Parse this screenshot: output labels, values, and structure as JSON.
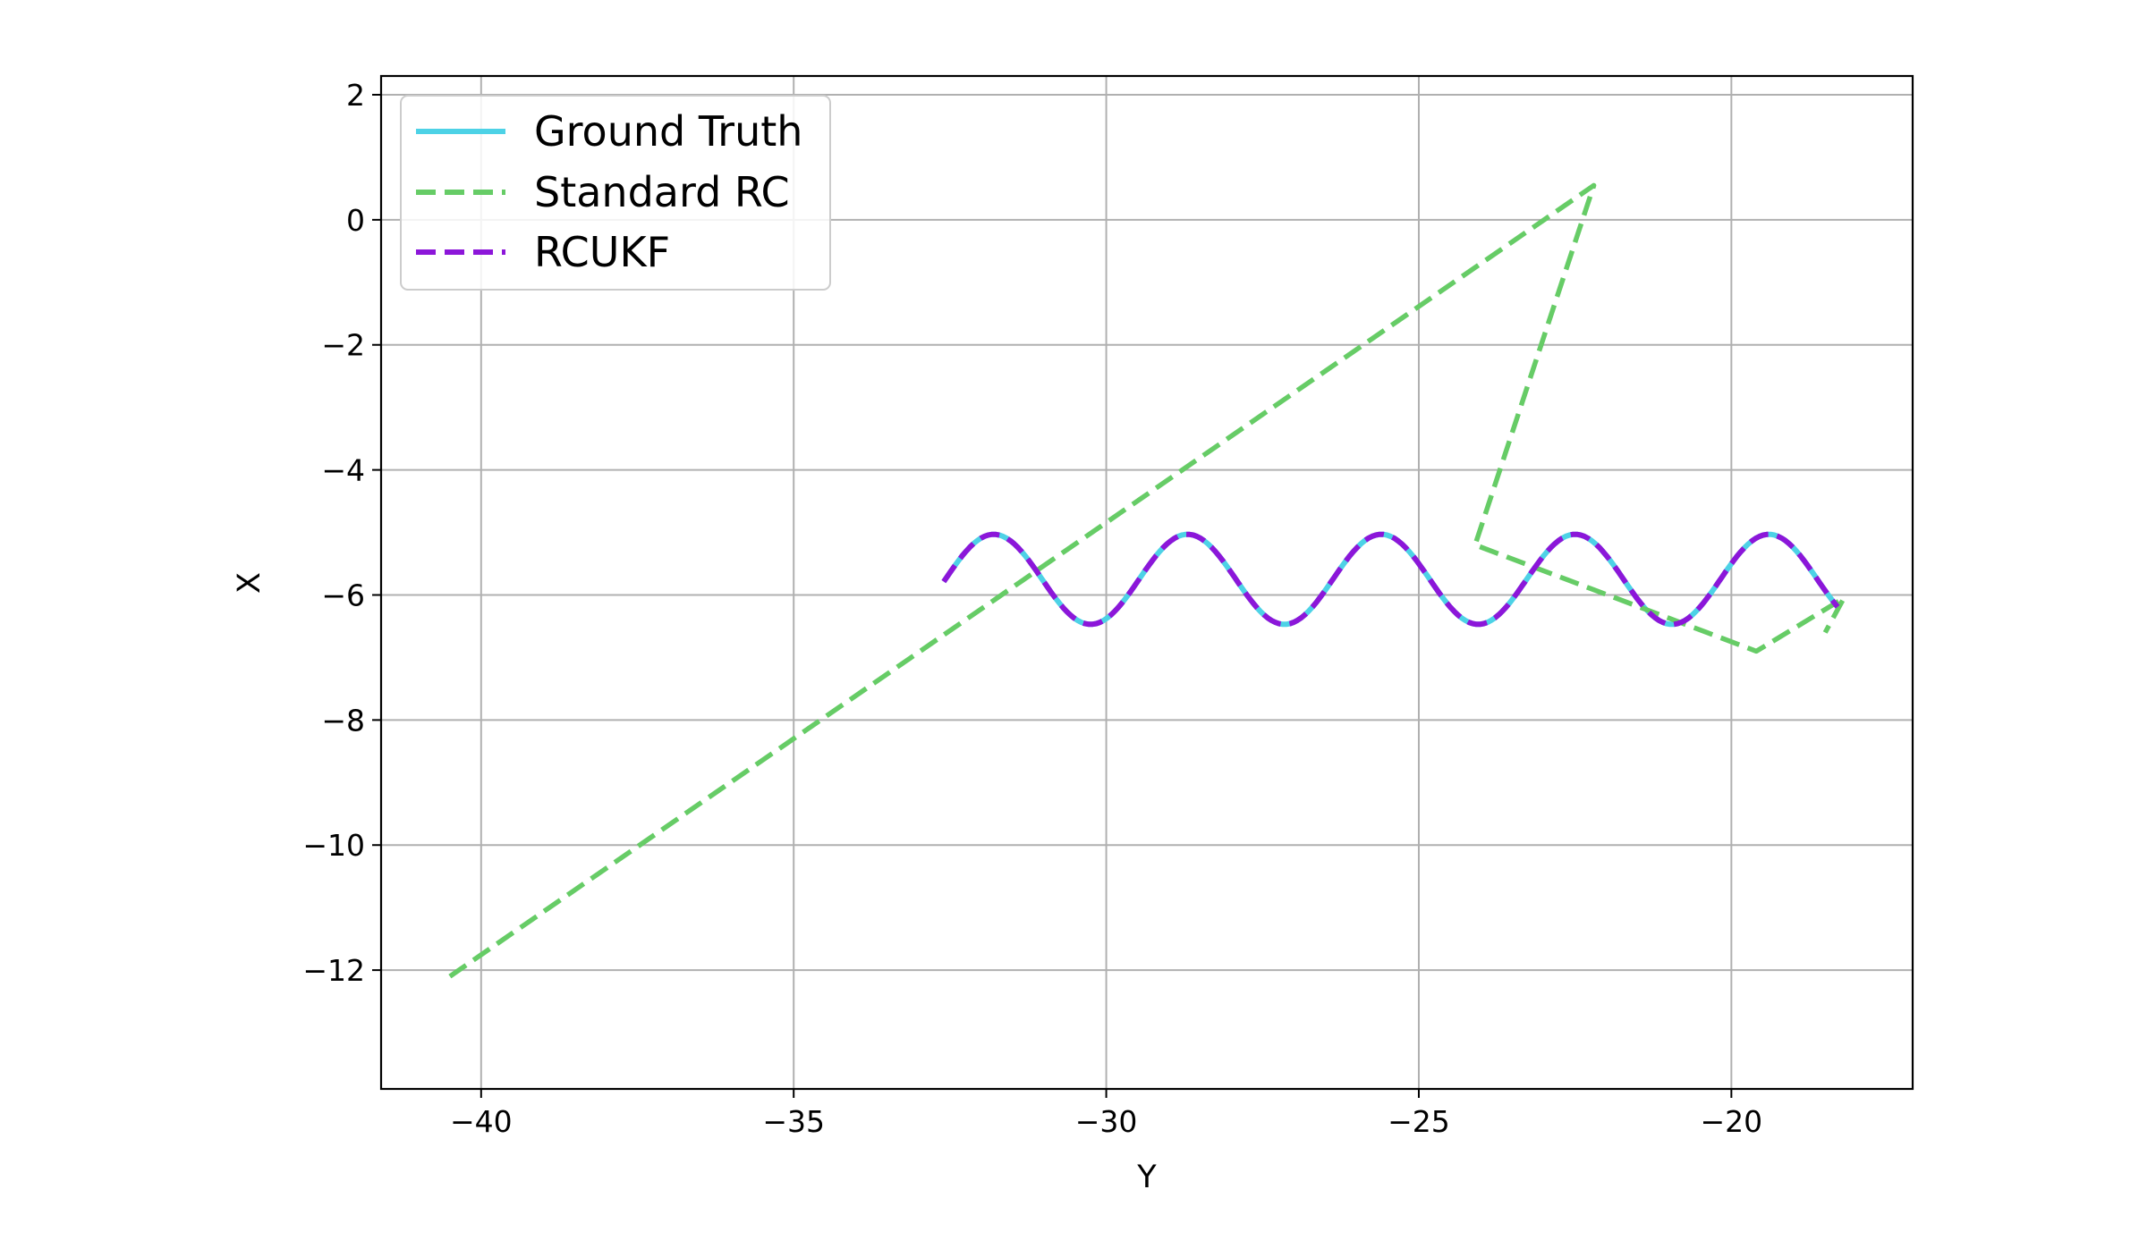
{
  "chart_data": {
    "type": "line",
    "xlabel": "Y",
    "ylabel": "X",
    "xlim": [
      -41.6,
      -17.1
    ],
    "ylim": [
      -13.9,
      2.3
    ],
    "xticks": [
      -40,
      -35,
      -30,
      -25,
      -20
    ],
    "yticks": [
      2,
      0,
      -2,
      -4,
      -6,
      -8,
      -10,
      -12
    ],
    "xtick_labels": [
      "−40",
      "−35",
      "−30",
      "−25",
      "−20"
    ],
    "ytick_labels": [
      "2",
      "0",
      "−2",
      "−4",
      "−6",
      "−8",
      "−10",
      "−12"
    ],
    "grid": true,
    "legend_position": "top-left",
    "series": [
      {
        "name": "Ground Truth",
        "color": "#4dd2e6",
        "style": "solid",
        "wave": {
          "y_start": -32.6,
          "y_end": -18.3,
          "x_start": -5.7,
          "x_end": -6.6,
          "center": -5.75,
          "amplitude": 0.72,
          "wavelength": 3.1,
          "phase_y": -31.8
        },
        "x": [],
        "y": []
      },
      {
        "name": "Standard RC",
        "color": "#66cc66",
        "style": "dashed",
        "x": [
          -40.5,
          -22.2,
          -24.1,
          -19.6,
          -18.2,
          -18.5
        ],
        "y": [
          -12.1,
          0.55,
          -5.2,
          -6.9,
          -6.05,
          -6.6
        ]
      },
      {
        "name": "RCUKF",
        "color": "#8c16d9",
        "style": "dashed",
        "wave": {
          "y_start": -32.6,
          "y_end": -18.3,
          "x_start": -5.7,
          "x_end": -6.6,
          "center": -5.75,
          "amplitude": 0.72,
          "wavelength": 3.1,
          "phase_y": -31.8
        },
        "x": [],
        "y": []
      }
    ]
  }
}
